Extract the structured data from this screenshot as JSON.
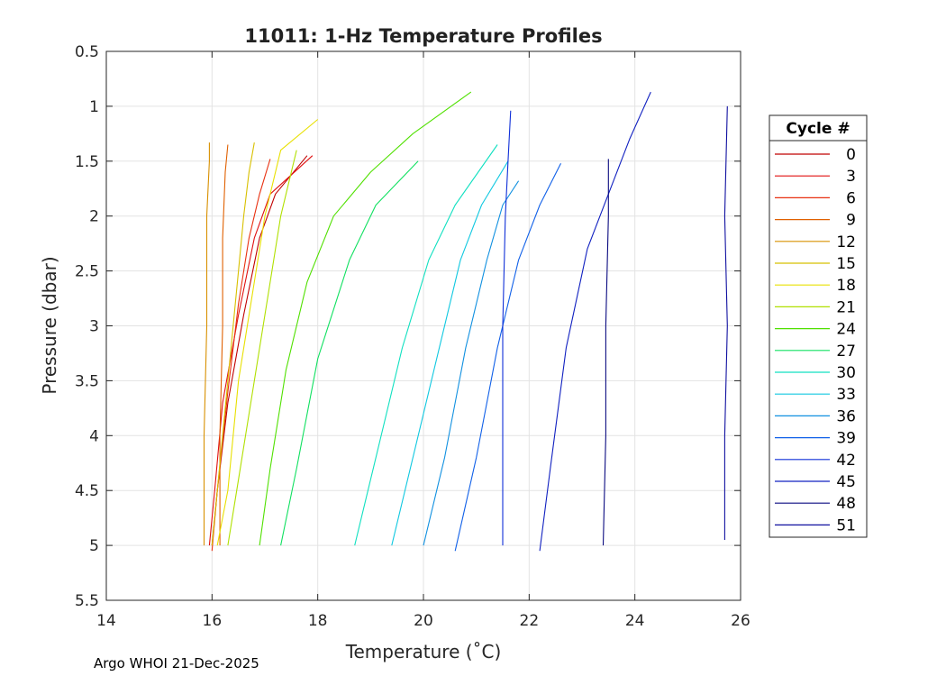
{
  "chart_data": {
    "type": "line",
    "title": "11011: 1-Hz Temperature Profiles",
    "xlabel": "Temperature (˚C)",
    "ylabel": "Pressure (dbar)",
    "xlim": [
      14,
      26
    ],
    "ylim": [
      5.5,
      0.5
    ],
    "y_reversed": true,
    "grid": true,
    "xticks": [
      "14",
      "16",
      "18",
      "20",
      "22",
      "24",
      "26"
    ],
    "yticks": [
      "0.5",
      "1",
      "1.5",
      "2",
      "2.5",
      "3",
      "3.5",
      "4",
      "4.5",
      "5",
      "5.5"
    ],
    "legend": {
      "title": "Cycle #",
      "placement": "outside-right"
    },
    "series": [
      {
        "name": "0",
        "color": "#c00000",
        "x": [
          16.0,
          16.1,
          16.3,
          16.6,
          16.9,
          17.2,
          17.8
        ],
        "y": [
          5.0,
          4.5,
          3.7,
          2.9,
          2.2,
          1.8,
          1.45
        ]
      },
      {
        "name": "3",
        "color": "#e01010",
        "x": [
          15.95,
          16.05,
          16.2,
          16.5,
          16.8,
          17.1,
          17.9
        ],
        "y": [
          5.0,
          4.5,
          3.7,
          2.9,
          2.2,
          1.8,
          1.45
        ]
      },
      {
        "name": "6",
        "color": "#e83010",
        "x": [
          16.0,
          16.1,
          16.3,
          16.5,
          16.7,
          16.9,
          17.1
        ],
        "y": [
          5.05,
          4.5,
          3.6,
          2.8,
          2.2,
          1.8,
          1.48
        ]
      },
      {
        "name": "9",
        "color": "#e06000",
        "x": [
          16.15,
          16.15,
          16.2,
          16.2,
          16.25,
          16.3
        ],
        "y": [
          5.0,
          4.0,
          3.0,
          2.2,
          1.6,
          1.35
        ]
      },
      {
        "name": "12",
        "color": "#d89000",
        "x": [
          15.85,
          15.85,
          15.9,
          15.9,
          15.95,
          15.95
        ],
        "y": [
          5.0,
          4.0,
          3.0,
          2.0,
          1.5,
          1.33
        ]
      },
      {
        "name": "15",
        "color": "#d8c000",
        "x": [
          16.0,
          16.1,
          16.3,
          16.5,
          16.6,
          16.7,
          16.8
        ],
        "y": [
          5.0,
          4.5,
          3.5,
          2.5,
          2.0,
          1.6,
          1.33
        ]
      },
      {
        "name": "18",
        "color": "#e8e000",
        "x": [
          16.1,
          16.3,
          16.5,
          16.8,
          17.0,
          17.3,
          18.0
        ],
        "y": [
          5.0,
          4.5,
          3.5,
          2.6,
          2.0,
          1.4,
          1.12
        ]
      },
      {
        "name": "21",
        "color": "#b0e000",
        "x": [
          16.3,
          16.5,
          16.8,
          17.1,
          17.3,
          17.5,
          17.6
        ],
        "y": [
          5.0,
          4.4,
          3.5,
          2.6,
          2.0,
          1.6,
          1.4
        ]
      },
      {
        "name": "24",
        "color": "#50e000",
        "x": [
          16.9,
          17.1,
          17.4,
          17.8,
          18.3,
          19.0,
          19.8,
          20.9
        ],
        "y": [
          5.0,
          4.3,
          3.4,
          2.6,
          2.0,
          1.6,
          1.25,
          0.87
        ]
      },
      {
        "name": "27",
        "color": "#10e060",
        "x": [
          17.3,
          17.6,
          18.0,
          18.6,
          19.1,
          19.9
        ],
        "y": [
          5.0,
          4.3,
          3.3,
          2.4,
          1.9,
          1.5
        ]
      },
      {
        "name": "30",
        "color": "#10e0c0",
        "x": [
          18.7,
          19.1,
          19.6,
          20.1,
          20.6,
          21.4
        ],
        "y": [
          5.0,
          4.2,
          3.2,
          2.4,
          1.9,
          1.35
        ]
      },
      {
        "name": "33",
        "color": "#10c8e0",
        "x": [
          19.4,
          19.8,
          20.3,
          20.7,
          21.1,
          21.6
        ],
        "y": [
          5.0,
          4.2,
          3.2,
          2.4,
          1.9,
          1.5
        ]
      },
      {
        "name": "36",
        "color": "#1090e0",
        "x": [
          20.0,
          20.4,
          20.8,
          21.2,
          21.5,
          21.8
        ],
        "y": [
          5.0,
          4.2,
          3.2,
          2.4,
          1.9,
          1.68
        ]
      },
      {
        "name": "39",
        "color": "#1060e8",
        "x": [
          20.6,
          21.0,
          21.4,
          21.8,
          22.2,
          22.6
        ],
        "y": [
          5.05,
          4.2,
          3.2,
          2.4,
          1.9,
          1.52
        ]
      },
      {
        "name": "42",
        "color": "#1030d8",
        "x": [
          21.5,
          21.5,
          21.5,
          21.55,
          21.6,
          21.65
        ],
        "y": [
          5.0,
          4.0,
          3.0,
          2.0,
          1.5,
          1.04
        ]
      },
      {
        "name": "45",
        "color": "#1020c0",
        "x": [
          22.2,
          22.4,
          22.7,
          23.1,
          23.5,
          23.9,
          24.3
        ],
        "y": [
          5.05,
          4.3,
          3.2,
          2.3,
          1.8,
          1.3,
          0.87
        ]
      },
      {
        "name": "48",
        "color": "#0a0a80",
        "x": [
          23.4,
          23.45,
          23.45,
          23.5,
          23.5
        ],
        "y": [
          5.0,
          4.0,
          3.0,
          2.0,
          1.48
        ]
      },
      {
        "name": "51",
        "color": "#1010a0",
        "x": [
          25.7,
          25.7,
          25.75,
          25.7,
          25.75
        ],
        "y": [
          4.95,
          4.0,
          3.0,
          2.0,
          1.0
        ]
      }
    ]
  },
  "footer": "Argo WHOI 21-Dec-2025"
}
